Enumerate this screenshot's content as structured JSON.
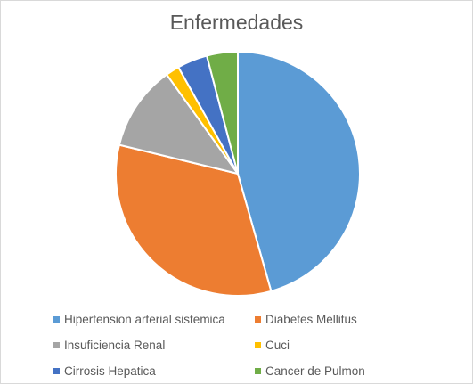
{
  "chart_data": {
    "type": "pie",
    "title": "Enfermedades",
    "legend_position": "bottom",
    "start_angle_deg": 90,
    "direction": "clockwise",
    "slices": [
      {
        "label": "Hipertension arterial sistemica",
        "value": 45.6,
        "color": "#5b9bd5"
      },
      {
        "label": "Diabetes Mellitus",
        "value": 33.2,
        "color": "#ed7d31"
      },
      {
        "label": "Insuficiencia Renal",
        "value": 11.3,
        "color": "#a5a5a5"
      },
      {
        "label": "Cuci",
        "value": 1.8,
        "color": "#ffc000"
      },
      {
        "label": "Cirrosis Hepatica",
        "value": 4.0,
        "color": "#4472c4"
      },
      {
        "label": "Cancer de Pulmon",
        "value": 4.1,
        "color": "#70ad47"
      }
    ]
  }
}
